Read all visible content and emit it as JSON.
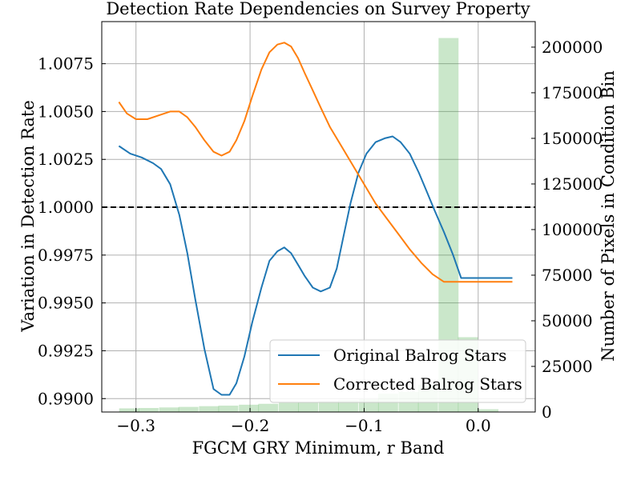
{
  "chart_data": {
    "type": "line",
    "title": "Detection Rate Dependencies on Survey Property",
    "xlabel": "FGCM GRY Minimum, r Band",
    "ylabel_left": "Variation in Detection Rate",
    "ylabel_right": "Number of Pixels in Condition Bin",
    "xlim": [
      -0.33,
      0.05
    ],
    "ylim_left": [
      0.9893,
      1.0097
    ],
    "ylim_right": [
      0,
      214000
    ],
    "x_ticks": [
      {
        "value": -0.3,
        "label": "−0.3"
      },
      {
        "value": -0.2,
        "label": "−0.2"
      },
      {
        "value": -0.1,
        "label": "−0.1"
      },
      {
        "value": 0.0,
        "label": "0.0"
      }
    ],
    "y_ticks_left": [
      {
        "value": 0.99,
        "label": "0.9900"
      },
      {
        "value": 0.9925,
        "label": "0.9925"
      },
      {
        "value": 0.995,
        "label": "0.9950"
      },
      {
        "value": 0.9975,
        "label": "0.9975"
      },
      {
        "value": 1.0,
        "label": "1.0000"
      },
      {
        "value": 1.0025,
        "label": "1.0025"
      },
      {
        "value": 1.005,
        "label": "1.0050"
      },
      {
        "value": 1.0075,
        "label": "1.0075"
      }
    ],
    "y_ticks_right": [
      {
        "value": 0,
        "label": "0"
      },
      {
        "value": 25000,
        "label": "25000"
      },
      {
        "value": 50000,
        "label": "50000"
      },
      {
        "value": 75000,
        "label": "75000"
      },
      {
        "value": 100000,
        "label": "100000"
      },
      {
        "value": 125000,
        "label": "125000"
      },
      {
        "value": 150000,
        "label": "150000"
      },
      {
        "value": 175000,
        "label": "175000"
      },
      {
        "value": 200000,
        "label": "200000"
      }
    ],
    "grid": true,
    "reference_line": {
      "y": 1.0,
      "style": "dashed",
      "color": "#000000"
    },
    "series": [
      {
        "name": "Original Balrog Stars",
        "color": "#1f77b4",
        "x": [
          -0.315,
          -0.305,
          -0.295,
          -0.285,
          -0.278,
          -0.27,
          -0.262,
          -0.255,
          -0.248,
          -0.24,
          -0.232,
          -0.225,
          -0.218,
          -0.212,
          -0.205,
          -0.198,
          -0.19,
          -0.183,
          -0.176,
          -0.17,
          -0.164,
          -0.158,
          -0.152,
          -0.145,
          -0.138,
          -0.13,
          -0.124,
          -0.118,
          -0.112,
          -0.105,
          -0.098,
          -0.09,
          -0.082,
          -0.075,
          -0.068,
          -0.06,
          -0.052,
          -0.045,
          -0.038,
          -0.03,
          -0.022,
          -0.015,
          -0.008,
          0.0,
          0.008,
          0.015,
          0.022,
          0.03
        ],
        "y": [
          1.0032,
          1.0028,
          1.0026,
          1.0023,
          1.002,
          1.0012,
          0.9996,
          0.9976,
          0.9952,
          0.9926,
          0.9905,
          0.9902,
          0.9902,
          0.9908,
          0.9922,
          0.994,
          0.9958,
          0.9972,
          0.9977,
          0.9979,
          0.9976,
          0.997,
          0.9964,
          0.9958,
          0.9956,
          0.9958,
          0.9968,
          0.9985,
          1.0002,
          1.0018,
          1.0028,
          1.0034,
          1.0036,
          1.0037,
          1.0034,
          1.0028,
          1.0018,
          1.0008,
          0.9998,
          0.9987,
          0.9975,
          0.9963,
          0.9963,
          0.9963,
          0.9963,
          0.9963,
          0.9963,
          0.9963
        ]
      },
      {
        "name": "Corrected Balrog Stars",
        "color": "#ff7f0e",
        "x": [
          -0.315,
          -0.308,
          -0.3,
          -0.29,
          -0.28,
          -0.27,
          -0.262,
          -0.255,
          -0.248,
          -0.24,
          -0.232,
          -0.225,
          -0.218,
          -0.212,
          -0.205,
          -0.198,
          -0.19,
          -0.183,
          -0.176,
          -0.17,
          -0.164,
          -0.158,
          -0.152,
          -0.145,
          -0.138,
          -0.13,
          -0.12,
          -0.11,
          -0.1,
          -0.09,
          -0.08,
          -0.07,
          -0.06,
          -0.05,
          -0.04,
          -0.03,
          -0.02,
          -0.01,
          0.0,
          0.01,
          0.02,
          0.03
        ],
        "y": [
          1.0055,
          1.0049,
          1.0046,
          1.0046,
          1.0048,
          1.005,
          1.005,
          1.0047,
          1.0042,
          1.0035,
          1.0029,
          1.0027,
          1.0029,
          1.0035,
          1.0045,
          1.0058,
          1.0072,
          1.0081,
          1.0085,
          1.0086,
          1.0084,
          1.0078,
          1.007,
          1.0061,
          1.0052,
          1.0042,
          1.0032,
          1.0022,
          1.0012,
          1.0002,
          0.9994,
          0.9986,
          0.9978,
          0.9971,
          0.9965,
          0.9961,
          0.9961,
          0.9961,
          0.9961,
          0.9961,
          0.9961,
          0.9961
        ]
      }
    ],
    "histogram": {
      "color": "#2ca02c",
      "opacity": 0.25,
      "bin_width": 0.0175,
      "bin_centers": [
        -0.306,
        -0.289,
        -0.271,
        -0.254,
        -0.236,
        -0.219,
        -0.201,
        -0.184,
        -0.166,
        -0.149,
        -0.131,
        -0.114,
        -0.096,
        -0.079,
        -0.061,
        -0.044,
        -0.026,
        -0.009,
        0.009
      ],
      "counts": [
        2000,
        2200,
        2500,
        2800,
        3200,
        3500,
        4000,
        4500,
        5000,
        5500,
        6000,
        6500,
        7000,
        10000,
        11000,
        15000,
        205000,
        41000,
        1500
      ]
    },
    "legend": {
      "placement": "lower-right",
      "entries": [
        "Original Balrog Stars",
        "Corrected Balrog Stars"
      ]
    }
  }
}
